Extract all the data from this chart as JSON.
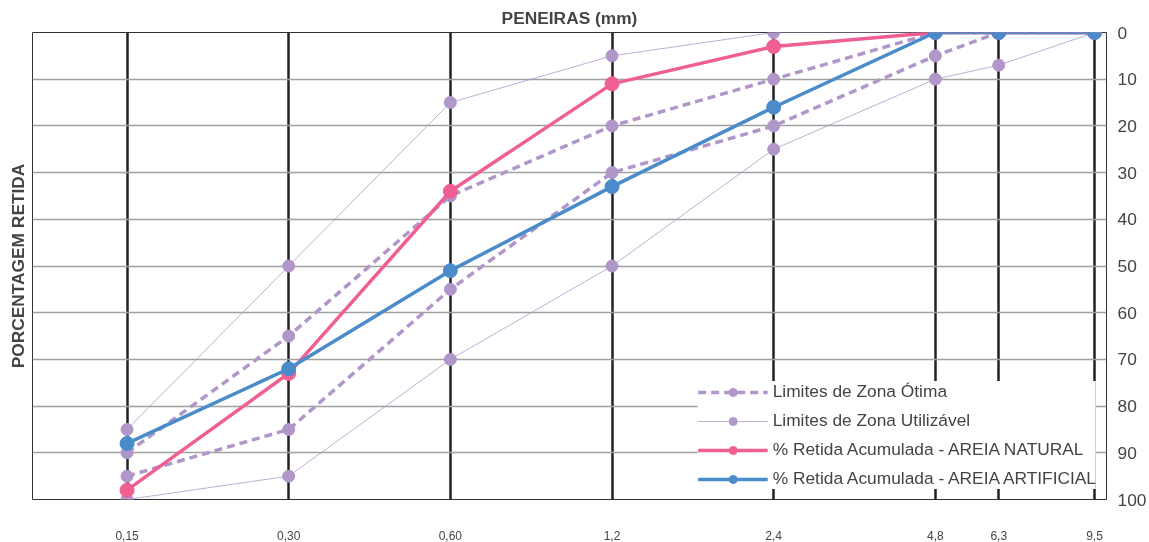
{
  "chart_data": {
    "type": "line",
    "title": "PENEIRAS (mm)",
    "ylabel": "PORCENTAGEM RETIDA",
    "log": "x",
    "xlim": [
      0.1,
      10
    ],
    "xticks": [
      {
        "value": 0.15,
        "label": "0,15"
      },
      {
        "value": 0.3,
        "label": "0,30"
      },
      {
        "value": 0.6,
        "label": "0,60"
      },
      {
        "value": 1.2,
        "label": "1,2"
      },
      {
        "value": 2.4,
        "label": "2,4"
      },
      {
        "value": 4.8,
        "label": "4,8"
      },
      {
        "value": 6.3,
        "label": "6,3"
      },
      {
        "value": 9.5,
        "label": "9,5"
      }
    ],
    "ylim": [
      100,
      0
    ],
    "yticks": [
      0,
      10,
      20,
      30,
      40,
      50,
      60,
      70,
      80,
      90,
      100
    ],
    "x": [
      0.15,
      0.3,
      0.6,
      1.2,
      2.4,
      4.8,
      6.3,
      9.5
    ],
    "grid": true,
    "legend": "bottom right",
    "marker": "circle",
    "series": [
      {
        "name": "Limites de Zona Ótima",
        "color": "#b197c9",
        "line_style": "dashed",
        "values": [
          90,
          65,
          35,
          20,
          10,
          0,
          0,
          0
        ]
      },
      {
        "color": "#b197c9",
        "line_style": "dashed",
        "values": [
          95,
          85,
          55,
          30,
          20,
          5,
          0,
          0
        ]
      },
      {
        "name": "Limites de Zona Utilizável",
        "color": "#b197c9",
        "line_style": "solid",
        "values": [
          85,
          50,
          15,
          5,
          0,
          0,
          0,
          0
        ]
      },
      {
        "color": "#b197c9",
        "line_style": "solid",
        "values": [
          100,
          95,
          70,
          50,
          25,
          10,
          7,
          0
        ]
      },
      {
        "name": "% Retida Acumulada - AREIA NATURAL",
        "color": "#ef5f94",
        "line_style": "solid",
        "values": [
          98,
          73,
          34,
          11,
          3,
          0,
          0,
          0
        ]
      },
      {
        "name": "% Retida Acumulada - AREIA ARTIFICIAL",
        "color": "#4a8bca",
        "line_style": "solid",
        "values": [
          88,
          72,
          51,
          33,
          16,
          0,
          0,
          0
        ]
      }
    ]
  }
}
